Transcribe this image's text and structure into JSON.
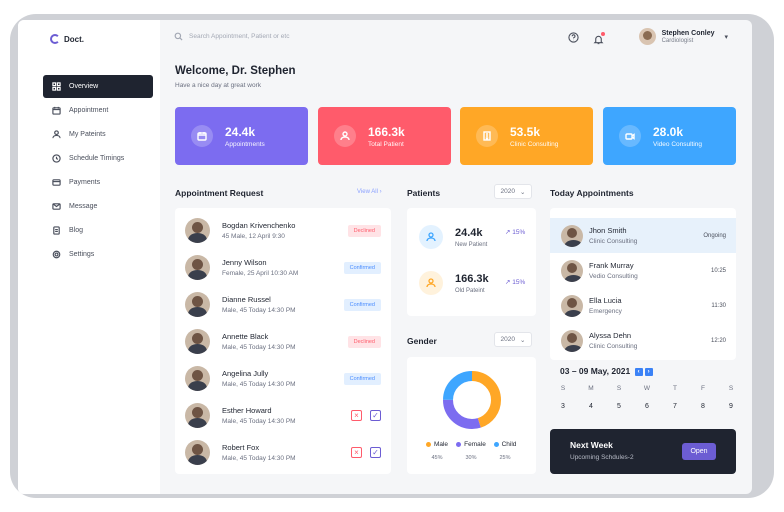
{
  "app": {
    "logo_text": "Doct."
  },
  "nav": [
    {
      "label": "Overview",
      "icon": "grid-icon"
    },
    {
      "label": "Appointment",
      "icon": "calendar-icon"
    },
    {
      "label": "My Pateints",
      "icon": "user-icon"
    },
    {
      "label": "Schedule Timings",
      "icon": "clock-icon"
    },
    {
      "label": "Payments",
      "icon": "card-icon"
    },
    {
      "label": "Message",
      "icon": "mail-icon"
    },
    {
      "label": "Blog",
      "icon": "document-icon"
    },
    {
      "label": "Settings",
      "icon": "gear-icon"
    }
  ],
  "search": {
    "placeholder": "Search Appointment, Patient or etc"
  },
  "user": {
    "name": "Stephen Conley",
    "role": "Cardiologist"
  },
  "welcome": {
    "title": "Welcome, Dr. Stephen",
    "subtitle": "Have a nice day at great work"
  },
  "stats": [
    {
      "value": "24.4k",
      "label": "Appointments",
      "color": "#7c6cf0",
      "icon": "calendar-icon"
    },
    {
      "value": "166.3k",
      "label": "Total Patient",
      "color": "#ff5b6b",
      "icon": "user-icon"
    },
    {
      "value": "53.5k",
      "label": "Clinic Consulting",
      "color": "#ffa726",
      "icon": "building-icon"
    },
    {
      "value": "28.0k",
      "label": "Video Consulting",
      "color": "#3ea6ff",
      "icon": "video-icon"
    }
  ],
  "requests": {
    "title": "Appointment Request",
    "view_all": "View All",
    "rows": [
      {
        "name": "Bogdan Krivenchenko",
        "detail": "45 Male, 12 April 9:30",
        "status": "Declined"
      },
      {
        "name": "Jenny Wilson",
        "detail": "Female, 25 April 10:30 AM",
        "status": "Confirmed"
      },
      {
        "name": "Dianne Russel",
        "detail": "Male, 45 Today 14:30 PM",
        "status": "Confirmed"
      },
      {
        "name": "Annette Black",
        "detail": "Male, 45 Today 14:30 PM",
        "status": "Declined"
      },
      {
        "name": "Angelina Jully",
        "detail": "Male, 45 Today 14:30 PM",
        "status": "Confirmed"
      },
      {
        "name": "Esther Howard",
        "detail": "Male, 45 Today 14:30 PM",
        "status": ""
      },
      {
        "name": "Robert Fox",
        "detail": "Male, 45 Today 14:30 PM",
        "status": ""
      }
    ]
  },
  "patients": {
    "title": "Patients",
    "year": "2020",
    "items": [
      {
        "value": "24.4k",
        "label": "New Patient",
        "trend": "15%",
        "color": "#3ea6ff"
      },
      {
        "value": "166.3k",
        "label": "Old Pateint",
        "trend": "15%",
        "color": "#ffa726"
      }
    ]
  },
  "gender": {
    "title": "Gender",
    "year": "2020",
    "items": [
      {
        "label": "Male",
        "percent": "45%",
        "value": 45,
        "color": "#ffa726"
      },
      {
        "label": "Female",
        "percent": "30%",
        "value": 30,
        "color": "#7c6cf0"
      },
      {
        "label": "Child",
        "percent": "25%",
        "value": 25,
        "color": "#3ea6ff"
      }
    ]
  },
  "today": {
    "title": "Today Appointments",
    "rows": [
      {
        "name": "Jhon Smith",
        "detail": "Clinic Consulting",
        "time": "Ongoing"
      },
      {
        "name": "Frank Murray",
        "detail": "Vedio Consulting",
        "time": "10:25"
      },
      {
        "name": "Ella Lucia",
        "detail": "Emergency",
        "time": "11:30"
      },
      {
        "name": "Alyssa Dehn",
        "detail": "Clinic Consulting",
        "time": "12:20"
      }
    ]
  },
  "week": {
    "range": "03 – 09 May, 2021",
    "days": [
      {
        "w": "S",
        "d": "3"
      },
      {
        "w": "M",
        "d": "4"
      },
      {
        "w": "S",
        "d": "5"
      },
      {
        "w": "W",
        "d": "6"
      },
      {
        "w": "T",
        "d": "7"
      },
      {
        "w": "F",
        "d": "8"
      },
      {
        "w": "S",
        "d": "9"
      }
    ]
  },
  "next_week": {
    "title": "Next Week",
    "subtitle": "Upcoming Schdules-2",
    "button": "Open"
  }
}
